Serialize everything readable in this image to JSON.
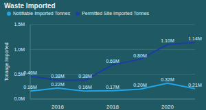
{
  "chart_data": {
    "type": "line",
    "title": "Waste Imported",
    "y_label": "Tonnage Imported",
    "x": [
      2015,
      2016,
      2017,
      2018,
      2019,
      2020,
      2021
    ],
    "xlim": [
      2015,
      2021
    ],
    "xticks": [
      2016,
      2018,
      2020
    ],
    "ylim": [
      0,
      1500000
    ],
    "yticks": [
      {
        "value": 0,
        "label": "0.0M"
      },
      {
        "value": 500000,
        "label": "0.5M"
      },
      {
        "value": 1000000,
        "label": "1.0M"
      },
      {
        "value": 1500000,
        "label": "1.5M"
      }
    ],
    "grid": true,
    "data_labels": true,
    "legend": "top",
    "series": [
      {
        "name": "Notifiable Imported Tonnes",
        "color": "#22a6ea",
        "values": [
          160000,
          220000,
          160000,
          170000,
          200000,
          320000,
          210000
        ],
        "value_labels": [
          "0.16M",
          "0.22M",
          "0.16M",
          "0.17M",
          "0.20M",
          "0.32M",
          "0.21M"
        ]
      },
      {
        "name": "Permitted Site Imported Tonnes",
        "color": "#1e3ca3",
        "values": [
          460000,
          380000,
          380000,
          690000,
          800000,
          1100000,
          1140000
        ],
        "value_labels": [
          "0.46M",
          "0.38M",
          "0.38M",
          "0.69M",
          "0.80M",
          "1.10M",
          "1.14M"
        ]
      }
    ]
  }
}
